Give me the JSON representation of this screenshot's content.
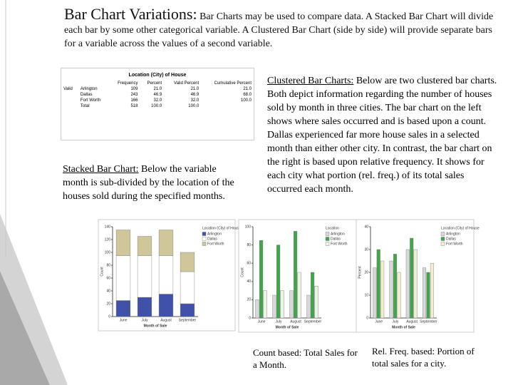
{
  "header": {
    "title": "Bar Chart Variations:",
    "text": "Bar Charts may be used to compare data.  A Stacked Bar Chart will divide each bar by some other categorical variable.  A Clustered Bar Chart (side by side) will provide separate bars for a variable across the values of a second variable."
  },
  "table": {
    "title": "Location (City) of House",
    "columns": [
      "Frequency",
      "Percent",
      "Valid Percent",
      "Cumulative Percent"
    ],
    "group": "Valid",
    "rows": [
      {
        "label": "Arlington",
        "cells": [
          "109",
          "21.0",
          "21.0",
          "21.0"
        ]
      },
      {
        "label": "Dallas",
        "cells": [
          "243",
          "46.9",
          "46.9",
          "68.0"
        ]
      },
      {
        "label": "Fort Worth",
        "cells": [
          "166",
          "32.0",
          "32.0",
          "100.0"
        ]
      },
      {
        "label": "Total",
        "cells": [
          "518",
          "100.0",
          "100.0"
        ]
      }
    ]
  },
  "stacked_text": {
    "label": "Stacked Bar Chart:",
    "body": "Below the variable month is sub-divided by the location of the houses sold during the specified months."
  },
  "clustered_text": {
    "label": "Clustered Bar Charts:",
    "body": "Below are two clustered bar charts.  Both depict information regarding the number of houses sold by month in three cities.  The bar chart on the left shows where sales occurred and is based upon a count.  Dallas experienced far more house sales in a selected month than either other city.  In contrast, the bar chart on the right is based upon relative frequency.  It shows for each city what portion (rel. freq.) of its total sales occurred each month."
  },
  "captions": [
    "Count based: Total Sales for a Month.",
    "Rel. Freq. based: Portion of total sales for a city."
  ],
  "charts": [
    {
      "type": "bar",
      "stacked": true,
      "xlabel": "Month of Sale",
      "ylabel": "Count",
      "legend_title": "Location (City) of House",
      "categories": [
        "June",
        "July",
        "August",
        "September"
      ],
      "ylim": [
        0,
        140
      ],
      "yticks": [
        0,
        20,
        40,
        60,
        80,
        100,
        120,
        140
      ],
      "series": [
        {
          "name": "Arlington",
          "color": "#3f51a8",
          "values": [
            25,
            30,
            35,
            20
          ]
        },
        {
          "name": "Dallas",
          "color": "#ffffff",
          "values": [
            70,
            65,
            60,
            50
          ]
        },
        {
          "name": "Fort Worth",
          "color": "#cfc79a",
          "values": [
            40,
            30,
            40,
            30
          ]
        }
      ]
    },
    {
      "type": "bar",
      "stacked": false,
      "xlabel": "Month of Sale",
      "ylabel": "Count",
      "legend_title": "Location",
      "categories": [
        "June",
        "July",
        "August",
        "September"
      ],
      "ylim": [
        0,
        100
      ],
      "yticks": [
        0,
        20,
        40,
        60,
        80,
        100
      ],
      "series": [
        {
          "name": "Arlington",
          "color": "#d8d8d8",
          "values": [
            20,
            25,
            30,
            25
          ]
        },
        {
          "name": "Dallas",
          "color": "#3fa64a",
          "values": [
            85,
            80,
            95,
            50
          ]
        },
        {
          "name": "Fort Worth",
          "color": "#eef3e6",
          "values": [
            30,
            30,
            50,
            35
          ]
        }
      ]
    },
    {
      "type": "bar",
      "stacked": false,
      "xlabel": "Month of Sale",
      "ylabel": "Percent",
      "legend_title": "Location (City) of House",
      "categories": [
        "June",
        "July",
        "August",
        "September"
      ],
      "ylim": [
        0,
        40
      ],
      "yticks": [
        0,
        10,
        20,
        30,
        40
      ],
      "series": [
        {
          "name": "Arlington",
          "color": "#d8d8d8",
          "values": [
            22,
            25,
            30,
            22
          ]
        },
        {
          "name": "Dallas",
          "color": "#3fa64a",
          "values": [
            30,
            28,
            35,
            20
          ]
        },
        {
          "name": "Fort Worth",
          "color": "#f2eecf",
          "values": [
            25,
            20,
            30,
            24
          ]
        }
      ]
    }
  ]
}
